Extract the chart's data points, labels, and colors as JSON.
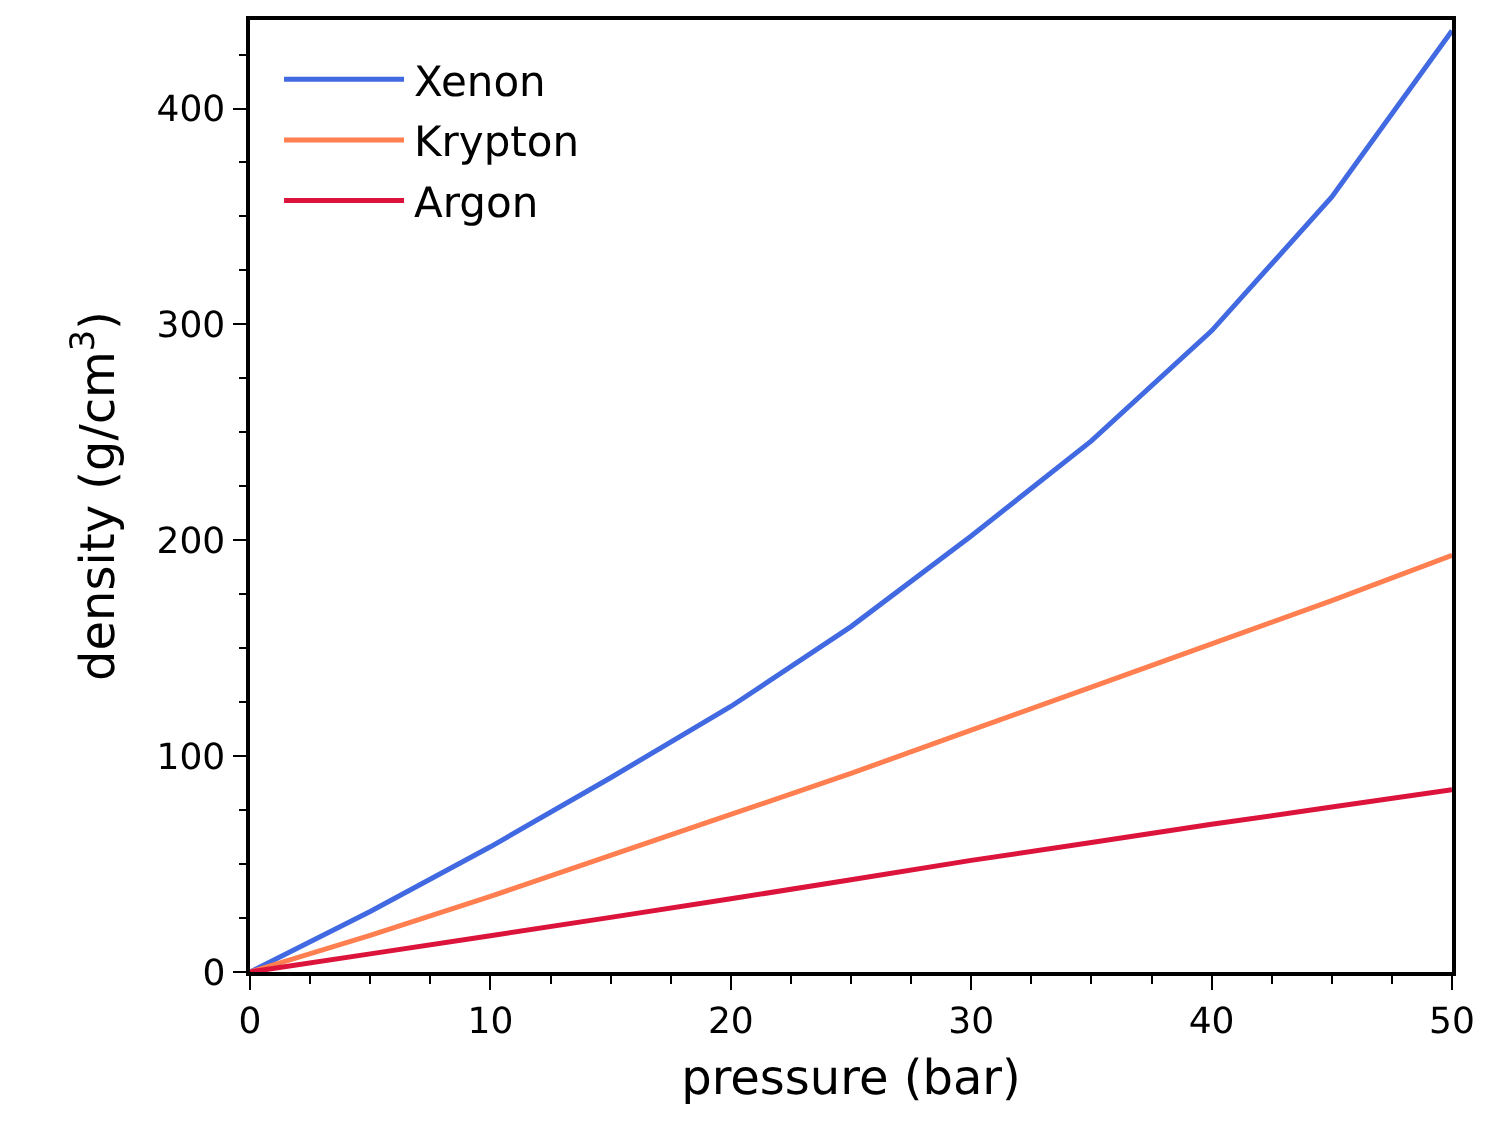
{
  "chart_data": {
    "type": "line",
    "xlabel": "pressure (bar)",
    "ylabel": "density (g/cm$^{3}$)",
    "x": [
      0,
      5,
      10,
      15,
      20,
      25,
      30,
      35,
      40,
      45,
      50
    ],
    "xlim": [
      0,
      50
    ],
    "ylim": [
      0,
      441
    ],
    "xticks": [
      0,
      {
        "value": 2.5,
        "label": null
      },
      {
        "value": 5,
        "label": null
      },
      {
        "value": 7.5,
        "label": null
      },
      10,
      {
        "value": 12.5,
        "label": null
      },
      {
        "value": 15,
        "label": null
      },
      {
        "value": 17.5,
        "label": null
      },
      20,
      {
        "value": 22.5,
        "label": null
      },
      {
        "value": 25,
        "label": null
      },
      {
        "value": 27.5,
        "label": null
      },
      30,
      {
        "value": 32.5,
        "label": null
      },
      {
        "value": 35,
        "label": null
      },
      {
        "value": 37.5,
        "label": null
      },
      40,
      {
        "value": 42.5,
        "label": null
      },
      {
        "value": 45,
        "label": null
      },
      {
        "value": 47.5,
        "label": null
      },
      50
    ],
    "yticks": [
      0,
      {
        "value": 25,
        "label": null
      },
      {
        "value": 50,
        "label": null
      },
      {
        "value": 75,
        "label": null
      },
      100,
      {
        "value": 125,
        "label": null
      },
      {
        "value": 150,
        "label": null
      },
      {
        "value": 175,
        "label": null
      },
      200,
      {
        "value": 225,
        "label": null
      },
      {
        "value": 250,
        "label": null
      },
      {
        "value": 275,
        "label": null
      },
      300,
      {
        "value": 325,
        "label": null
      },
      {
        "value": 350,
        "label": null
      },
      {
        "value": 375,
        "label": null
      },
      400,
      {
        "value": 425,
        "label": null
      }
    ],
    "legend": "top left",
    "grid": false,
    "marker": "none",
    "line_style": "solid",
    "series": [
      {
        "name": "Xenon",
        "color": "#4169e1",
        "values": [
          0,
          28,
          58,
          90,
          123,
          160,
          202,
          246,
          297,
          359,
          436
        ]
      },
      {
        "name": "Krypton",
        "color": "#ff7f50",
        "values": [
          0,
          17,
          35,
          54,
          73,
          92,
          112,
          132,
          152,
          172,
          193
        ]
      },
      {
        "name": "Argon",
        "color": "#dc143c",
        "values": [
          0,
          8.4,
          16.8,
          25.3,
          33.9,
          42.7,
          51.7,
          60,
          68.4,
          76.4,
          84.4
        ]
      }
    ]
  }
}
